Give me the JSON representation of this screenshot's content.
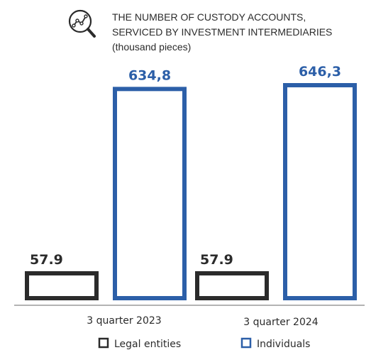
{
  "colors": {
    "legal": "#2b2b2b",
    "individuals": "#2c5fa8",
    "axis": "#9a9a9a"
  },
  "header": {
    "icon": "magnifier-chart-icon",
    "title_lines": [
      "THE NUMBER OF CUSTODY ACCOUNTS,",
      "SERVICED BY INVESTMENT INTERMEDIARIES",
      "(thousand pieces)"
    ]
  },
  "chart_data": {
    "type": "bar",
    "categories": [
      "3 quarter 2023",
      "3 quarter 2024"
    ],
    "series": [
      {
        "name": "Legal entities",
        "values": [
          57.9,
          57.9
        ],
        "labels": [
          "57.9",
          "57.9"
        ]
      },
      {
        "name": "Individuals",
        "values": [
          634.8,
          646.3
        ],
        "labels": [
          "634,8",
          "646,3"
        ]
      }
    ],
    "legend_position": "bottom",
    "grid": false
  }
}
